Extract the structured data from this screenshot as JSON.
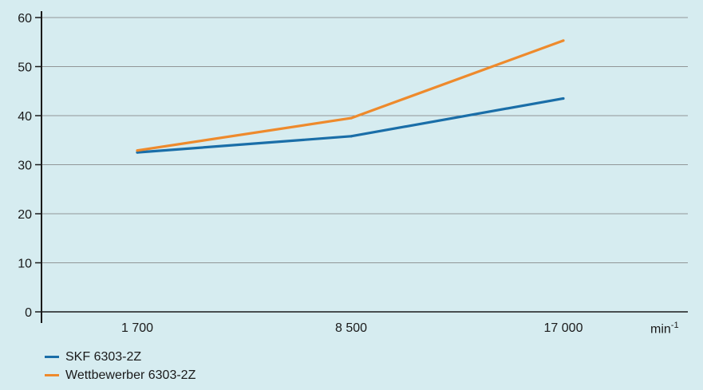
{
  "chart_data": {
    "type": "line",
    "categories": [
      "1 700",
      "8 500",
      "17 000"
    ],
    "x_unit": "min",
    "x_unit_exp": "-1",
    "series": [
      {
        "name": "SKF 6303-2Z",
        "color": "#1a6ea8",
        "values": [
          32.5,
          35.8,
          43.5
        ]
      },
      {
        "name": "Wettbewerber 6303-2Z",
        "color": "#ee8a2c",
        "values": [
          32.9,
          39.5,
          55.3
        ]
      }
    ],
    "ylim": [
      0,
      60
    ],
    "yticks": [
      0,
      10,
      20,
      30,
      40,
      50,
      60
    ],
    "grid": true,
    "legend_position": "bottom-left"
  }
}
